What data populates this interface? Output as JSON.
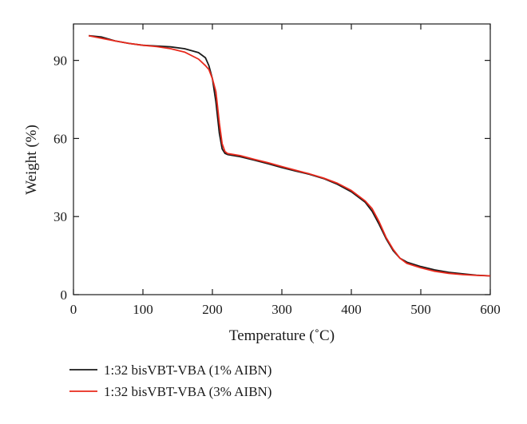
{
  "chart_data": {
    "type": "line",
    "xlabel": "Temperature (˚C)",
    "ylabel": "Weight (%)",
    "xlim": [
      0,
      600
    ],
    "ylim": [
      0,
      104
    ],
    "xticks": [
      0,
      100,
      200,
      300,
      400,
      500,
      600
    ],
    "yticks": [
      0,
      30,
      60,
      90
    ],
    "xtick_labels": [
      "0",
      "100",
      "200",
      "300",
      "400",
      "500",
      "600"
    ],
    "ytick_labels": [
      "0",
      "30",
      "60",
      "90"
    ],
    "grid": false,
    "legend_position": "bottom-left",
    "series": [
      {
        "name": "1:32 bisVBT-VBA (1% AIBN)",
        "color": "#1a1a1a",
        "x": [
          22,
          40,
          60,
          80,
          100,
          120,
          140,
          160,
          180,
          190,
          195,
          200,
          205,
          210,
          214,
          218,
          222,
          240,
          260,
          280,
          300,
          320,
          340,
          360,
          380,
          400,
          420,
          430,
          440,
          450,
          460,
          470,
          480,
          500,
          520,
          540,
          560,
          580,
          600
        ],
        "y": [
          99.5,
          99,
          97.5,
          96.5,
          95.8,
          95.5,
          95.2,
          94.5,
          93,
          91,
          88,
          83,
          74,
          62,
          56,
          54.3,
          53.8,
          53,
          51.7,
          50.3,
          48.8,
          47.5,
          46.2,
          44.6,
          42.4,
          39.5,
          35.5,
          32,
          27,
          21.5,
          17,
          14,
          12.5,
          10.8,
          9.5,
          8.6,
          8,
          7.5,
          7.2
        ]
      },
      {
        "name": "1:32 bisVBT-VBA (3% AIBN)",
        "color": "#e8291c",
        "x": [
          22,
          40,
          60,
          80,
          100,
          120,
          140,
          160,
          180,
          190,
          195,
          200,
          205,
          210,
          214,
          218,
          222,
          240,
          260,
          280,
          300,
          320,
          340,
          360,
          380,
          400,
          420,
          430,
          440,
          450,
          460,
          470,
          480,
          500,
          520,
          540,
          560,
          580,
          600
        ],
        "y": [
          99.5,
          98.5,
          97.5,
          96.5,
          95.8,
          95.3,
          94.5,
          93.2,
          90.5,
          88,
          86.5,
          83,
          78,
          66,
          58,
          55,
          54.2,
          53.4,
          52,
          50.7,
          49.2,
          47.8,
          46.4,
          44.8,
          42.8,
          40,
          36,
          33,
          28,
          22,
          17.5,
          14,
          12,
          10.3,
          9,
          8.2,
          7.7,
          7.4,
          7.2
        ]
      }
    ]
  }
}
